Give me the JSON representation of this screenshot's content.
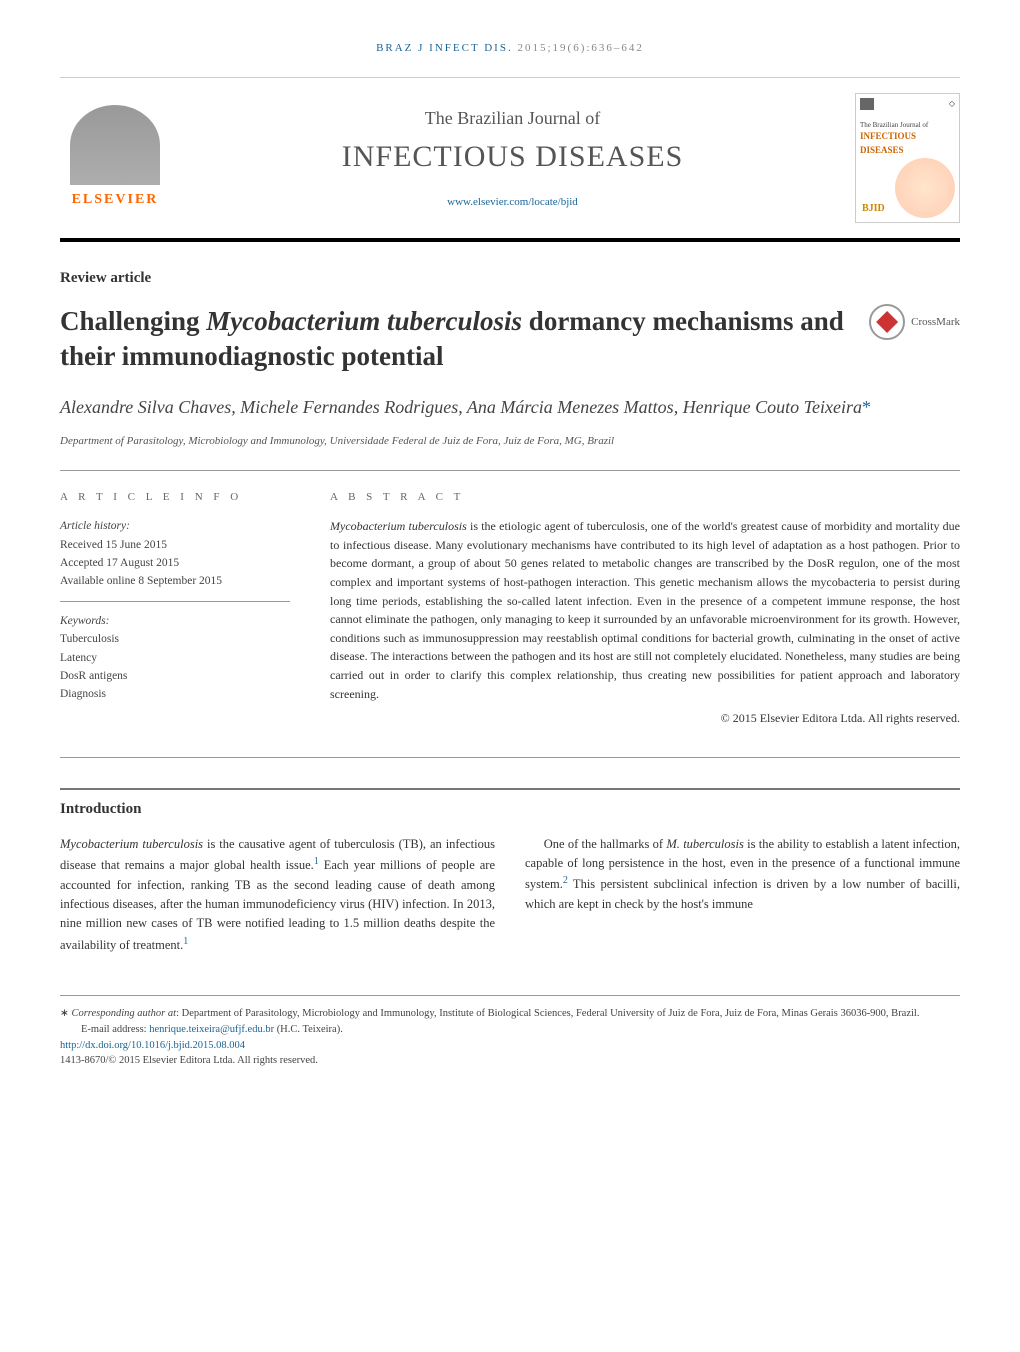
{
  "header": {
    "journal_abbrev": "BRAZ J INFECT DIS.",
    "citation": "2015;19(6):636–642"
  },
  "masthead": {
    "publisher": "ELSEVIER",
    "journal_subtitle": "The Brazilian Journal of",
    "journal_title": "INFECTIOUS DISEASES",
    "url": "www.elsevier.com/locate/bjid",
    "cover_small_title": "The Brazilian Journal of",
    "cover_big_title": "INFECTIOUS DISEASES",
    "cover_tag": "BJID"
  },
  "article": {
    "type": "Review article",
    "title_pre": "Challenging ",
    "title_italic": "Mycobacterium tuberculosis",
    "title_post": " dormancy mechanisms and their immunodiagnostic potential",
    "crossmark": "CrossMark",
    "authors": "Alexandre Silva Chaves, Michele Fernandes Rodrigues, Ana Márcia Menezes Mattos, Henrique Couto Teixeira",
    "corr_mark": "*",
    "affiliation": "Department of Parasitology, Microbiology and Immunology, Universidade Federal de Juiz de Fora, Juiz de Fora, MG, Brazil"
  },
  "info": {
    "section_label": "A R T I C L E   I N F O",
    "history_label": "Article history:",
    "received": "Received 15 June 2015",
    "accepted": "Accepted 17 August 2015",
    "online": "Available online 8 September 2015",
    "keywords_label": "Keywords:",
    "keywords": [
      "Tuberculosis",
      "Latency",
      "DosR antigens",
      "Diagnosis"
    ]
  },
  "abstract": {
    "section_label": "A B S T R A C T",
    "text_1_italic": "Mycobacterium tuberculosis",
    "text_1": " is the etiologic agent of tuberculosis, one of the world's greatest cause of morbidity and mortality due to infectious disease. Many evolutionary mechanisms have contributed to its high level of adaptation as a host pathogen. Prior to become dormant, a group of about 50 genes related to metabolic changes are transcribed by the DosR regulon, one of the most complex and important systems of host-pathogen interaction. This genetic mechanism allows the mycobacteria to persist during long time periods, establishing the so-called latent infection. Even in the presence of a competent immune response, the host cannot eliminate the pathogen, only managing to keep it surrounded by an unfavorable microenvironment for its growth. However, conditions such as immunosuppression may reestablish optimal conditions for bacterial growth, culminating in the onset of active disease. The interactions between the pathogen and its host are still not completely elucidated. Nonetheless, many studies are being carried out in order to clarify this complex relationship, thus creating new possibilities for patient approach and laboratory screening.",
    "copyright": "© 2015 Elsevier Editora Ltda. All rights reserved."
  },
  "intro": {
    "heading": "Introduction",
    "p1_italic": "Mycobacterium tuberculosis",
    "p1_a": " is the causative agent of tuberculosis (TB), an infectious disease that remains a major global health issue.",
    "p1_ref1": "1",
    "p1_b": " Each year millions of people are accounted for infection, ranking TB as the second leading cause of death among infectious diseases, after the human immunodeficiency virus (HIV) infection. In 2013, nine million new cases of TB were notified leading to 1.5 million deaths despite the availability of treatment.",
    "p1_ref2": "1",
    "p2_a": "One of the hallmarks of ",
    "p2_italic": "M. tuberculosis",
    "p2_b": " is the ability to establish a latent infection, capable of long persistence in the host, even in the presence of a functional immune system.",
    "p2_ref": "2",
    "p2_c": " This persistent subclinical infection is driven by a low number of bacilli, which are kept in check by the host's immune"
  },
  "footer": {
    "corr_label": "Corresponding author at",
    "corr_text": ": Department of Parasitology, Microbiology and Immunology, Institute of Biological Sciences, Federal University of Juiz de Fora, Juiz de Fora, Minas Gerais 36036-900, Brazil.",
    "email_label": "E-mail address: ",
    "email": "henrique.teixeira@ufjf.edu.br",
    "email_author": " (H.C. Teixeira).",
    "doi": "http://dx.doi.org/10.1016/j.bjid.2015.08.004",
    "issn_copyright": "1413-8670/© 2015 Elsevier Editora Ltda. All rights reserved."
  },
  "colors": {
    "link": "#1a6699",
    "elsevier_orange": "#ff6600",
    "crossmark_red": "#cc3333",
    "text_main": "#333333",
    "text_muted": "#555555",
    "border_dark": "#000000",
    "border_light": "#999999"
  }
}
